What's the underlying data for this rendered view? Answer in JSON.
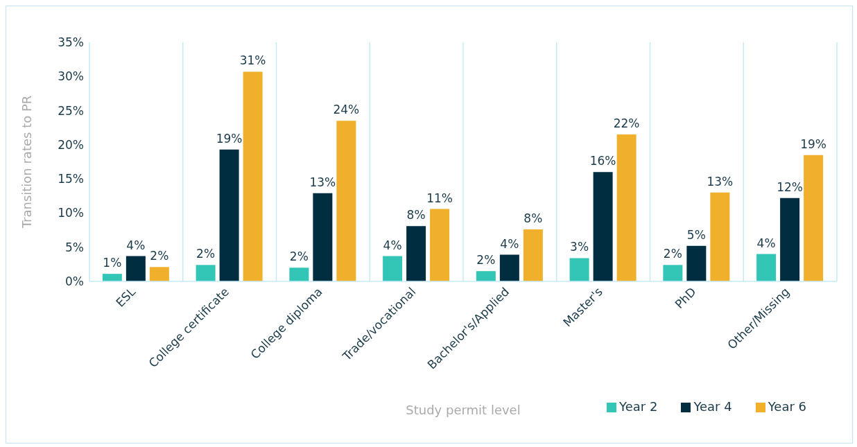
{
  "chart_data": {
    "type": "bar",
    "xlabel": "Study permit level",
    "ylabel": "Transition rates to PR",
    "categories": [
      "ESL",
      "College certificate",
      "College diploma",
      "Trade/vocational",
      "Bachelor's/Applied",
      "Master's",
      "PhD",
      "Other/Missing"
    ],
    "series": [
      {
        "name": "Year 2",
        "color": "#33c5b5",
        "values": [
          1.1,
          2.4,
          2.0,
          3.7,
          1.5,
          3.4,
          2.4,
          4.0
        ],
        "value_labels": [
          "1%",
          "2%",
          "2%",
          "4%",
          "2%",
          "3%",
          "2%",
          "4%"
        ]
      },
      {
        "name": "Year 4",
        "color": "#002d40",
        "values": [
          3.7,
          19.3,
          12.9,
          8.1,
          3.9,
          16.0,
          5.2,
          12.2
        ],
        "value_labels": [
          "4%",
          "19%",
          "13%",
          "8%",
          "4%",
          "16%",
          "5%",
          "12%"
        ]
      },
      {
        "name": "Year 6",
        "color": "#f0b02b",
        "values": [
          2.1,
          30.7,
          23.5,
          10.6,
          7.6,
          21.5,
          13.0,
          18.5
        ],
        "value_labels": [
          "2%",
          "31%",
          "24%",
          "11%",
          "8%",
          "22%",
          "13%",
          "19%"
        ]
      }
    ],
    "ylim": [
      0,
      35
    ],
    "yticks": [
      {
        "value": 0,
        "label": "0%"
      },
      {
        "value": 5,
        "label": "5%"
      },
      {
        "value": 10,
        "label": "10%"
      },
      {
        "value": 15,
        "label": "15%"
      },
      {
        "value": 20,
        "label": "20%"
      },
      {
        "value": 25,
        "label": "25%"
      },
      {
        "value": 30,
        "label": "30%"
      },
      {
        "value": 35,
        "label": "35%"
      }
    ],
    "grid": "x",
    "legend": "bottom right"
  }
}
